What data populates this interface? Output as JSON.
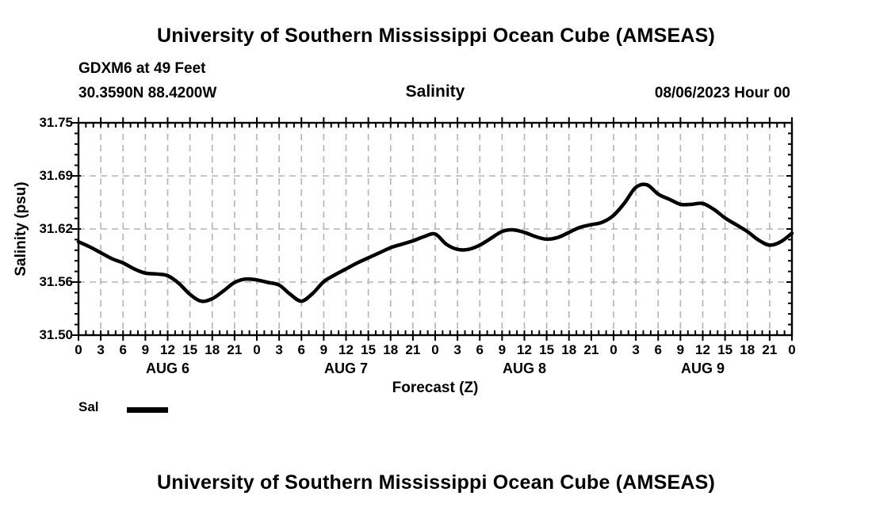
{
  "header": {
    "title": "University of Southern Mississippi Ocean Cube (AMSEAS)",
    "station": "GDXM6 at 49 Feet",
    "coords": "30.3590N  88.4200W",
    "variable": "Salinity",
    "datetime": "08/06/2023 Hour 00"
  },
  "legend": {
    "label": "Sal",
    "line_color": "#000000"
  },
  "footer": {
    "title": "University of Southern Mississippi Ocean Cube (AMSEAS)"
  },
  "chart_data": {
    "type": "line",
    "title": "Salinity",
    "xlabel": "Forecast (Z)",
    "ylabel": "Salinity (psu)",
    "xlim_hours": [
      0,
      96
    ],
    "ylim": [
      31.5,
      31.75
    ],
    "grid": "dashed",
    "grid_color": "#b4b4b4",
    "axis_color": "#000000",
    "line_color": "#000000",
    "line_width": 4.5,
    "x_major_step_hours": 3,
    "x_minor_step_hours": 1,
    "y_minor_step": 0.0125,
    "x_tick_labels": [
      "0",
      "3",
      "6",
      "9",
      "12",
      "15",
      "18",
      "21",
      "0",
      "3",
      "6",
      "9",
      "12",
      "15",
      "18",
      "21",
      "0",
      "3",
      "6",
      "9",
      "12",
      "15",
      "18",
      "21",
      "0",
      "3",
      "6",
      "9",
      "12",
      "15",
      "18",
      "21",
      "0"
    ],
    "day_labels": [
      {
        "label": "AUG 6",
        "center_hour": 12
      },
      {
        "label": "AUG 7",
        "center_hour": 36
      },
      {
        "label": "AUG 8",
        "center_hour": 60
      },
      {
        "label": "AUG 9",
        "center_hour": 84
      }
    ],
    "yticks": [
      {
        "value": 31.75,
        "label": "31.75"
      },
      {
        "value": 31.6875,
        "label": "31.69"
      },
      {
        "value": 31.625,
        "label": "31.62"
      },
      {
        "value": 31.5625,
        "label": "31.56"
      },
      {
        "value": 31.5,
        "label": "31.50"
      }
    ],
    "series": [
      {
        "name": "Sal",
        "points": [
          [
            0,
            31.61
          ],
          [
            1.5,
            31.604
          ],
          [
            3,
            31.597
          ],
          [
            4.5,
            31.59
          ],
          [
            6,
            31.585
          ],
          [
            7.5,
            31.578
          ],
          [
            9,
            31.573
          ],
          [
            10.5,
            31.572
          ],
          [
            12,
            31.57
          ],
          [
            13.5,
            31.561
          ],
          [
            15,
            31.548
          ],
          [
            16.5,
            31.54
          ],
          [
            18,
            31.543
          ],
          [
            19.5,
            31.552
          ],
          [
            21,
            31.562
          ],
          [
            22.5,
            31.566
          ],
          [
            24,
            31.565
          ],
          [
            25.5,
            31.562
          ],
          [
            27,
            31.559
          ],
          [
            28.5,
            31.548
          ],
          [
            30,
            31.54
          ],
          [
            31.5,
            31.549
          ],
          [
            33,
            31.563
          ],
          [
            34.5,
            31.571
          ],
          [
            36,
            31.578
          ],
          [
            37.5,
            31.585
          ],
          [
            39,
            31.591
          ],
          [
            40.5,
            31.597
          ],
          [
            42,
            31.603
          ],
          [
            43.5,
            31.607
          ],
          [
            45,
            31.611
          ],
          [
            46.5,
            31.616
          ],
          [
            48,
            31.619
          ],
          [
            49.5,
            31.607
          ],
          [
            51,
            31.601
          ],
          [
            52.5,
            31.601
          ],
          [
            54,
            31.606
          ],
          [
            55.5,
            31.614
          ],
          [
            57,
            31.622
          ],
          [
            58.5,
            31.624
          ],
          [
            60,
            31.621
          ],
          [
            61.5,
            31.616
          ],
          [
            63,
            31.613
          ],
          [
            64.5,
            31.615
          ],
          [
            66,
            31.621
          ],
          [
            67.5,
            31.627
          ],
          [
            69,
            31.63
          ],
          [
            70.5,
            31.633
          ],
          [
            72,
            31.641
          ],
          [
            73.5,
            31.656
          ],
          [
            75,
            31.674
          ],
          [
            76.5,
            31.677
          ],
          [
            78,
            31.666
          ],
          [
            79.5,
            31.66
          ],
          [
            81,
            31.654
          ],
          [
            82.5,
            31.654
          ],
          [
            84,
            31.655
          ],
          [
            85.5,
            31.648
          ],
          [
            87,
            31.638
          ],
          [
            88.5,
            31.63
          ],
          [
            90,
            31.622
          ],
          [
            91.5,
            31.612
          ],
          [
            93,
            31.606
          ],
          [
            94.5,
            31.61
          ],
          [
            96,
            31.62
          ]
        ]
      }
    ]
  }
}
